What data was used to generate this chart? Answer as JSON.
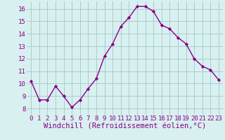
{
  "x": [
    0,
    1,
    2,
    3,
    4,
    5,
    6,
    7,
    8,
    9,
    10,
    11,
    12,
    13,
    14,
    15,
    16,
    17,
    18,
    19,
    20,
    21,
    22,
    23
  ],
  "y": [
    10.2,
    8.7,
    8.7,
    9.8,
    9.0,
    8.1,
    8.7,
    9.6,
    10.4,
    12.2,
    13.2,
    14.6,
    15.3,
    16.2,
    16.2,
    15.8,
    14.7,
    14.4,
    13.7,
    13.2,
    12.0,
    11.4,
    11.1,
    10.3
  ],
  "line_color": "#880088",
  "marker": "D",
  "marker_size": 2.2,
  "bg_color": "#d8f0f0",
  "grid_color": "#aacccc",
  "xlabel": "Windchill (Refroidissement éolien,°C)",
  "xlabel_color": "#880088",
  "xlabel_fontsize": 7.5,
  "ylim": [
    7.5,
    16.6
  ],
  "yticks": [
    8,
    9,
    10,
    11,
    12,
    13,
    14,
    15,
    16
  ],
  "xticks": [
    0,
    1,
    2,
    3,
    4,
    5,
    6,
    7,
    8,
    9,
    10,
    11,
    12,
    13,
    14,
    15,
    16,
    17,
    18,
    19,
    20,
    21,
    22,
    23
  ],
  "tick_color": "#880088",
  "tick_fontsize": 6.5,
  "line_width": 1.0
}
